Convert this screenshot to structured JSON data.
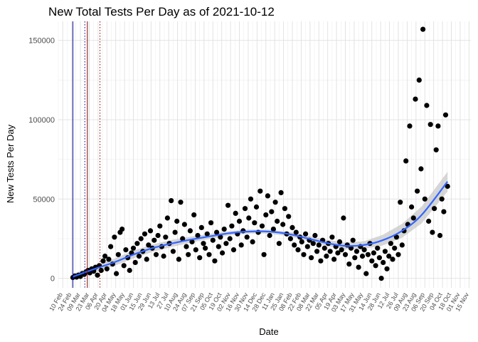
{
  "chart_data": {
    "type": "scatter",
    "title": "New Total Tests Per Day as of 2021-10-12",
    "xlabel": "Date",
    "ylabel": "New Tests Per Day",
    "ylim": [
      -6000,
      162000
    ],
    "xlim": [
      "2020-02-03",
      "2021-11-18"
    ],
    "y_ticks": [
      0,
      50000,
      100000,
      150000
    ],
    "y_tick_labels": [
      "0",
      "50000",
      "100000",
      "150000"
    ],
    "x_tick_dates": [
      "2020-02-10",
      "2020-02-24",
      "2020-03-09",
      "2020-03-23",
      "2020-04-06",
      "2020-04-20",
      "2020-05-04",
      "2020-05-18",
      "2020-06-01",
      "2020-06-15",
      "2020-06-29",
      "2020-07-13",
      "2020-07-27",
      "2020-08-10",
      "2020-08-24",
      "2020-09-07",
      "2020-09-21",
      "2020-10-05",
      "2020-10-19",
      "2020-11-02",
      "2020-11-16",
      "2020-11-30",
      "2020-12-14",
      "2020-12-28",
      "2021-01-11",
      "2021-01-25",
      "2021-02-08",
      "2021-02-22",
      "2021-03-08",
      "2021-03-22",
      "2021-04-05",
      "2021-04-19",
      "2021-05-03",
      "2021-05-17",
      "2021-05-31",
      "2021-06-14",
      "2021-06-28",
      "2021-07-12",
      "2021-07-26",
      "2021-08-09",
      "2021-08-23",
      "2021-09-06",
      "2021-09-20",
      "2021-10-04",
      "2021-10-18",
      "2021-11-01",
      "2021-11-15"
    ],
    "x_tick_labels": [
      "10 Feb",
      "24 Feb",
      "09 Mar",
      "23 Mar",
      "06 Apr",
      "20 Apr",
      "04 May",
      "18 May",
      "01 Jun",
      "15 Jun",
      "29 Jun",
      "13 Jul",
      "27 Jul",
      "10 Aug",
      "24 Aug",
      "07 Sep",
      "21 Sep",
      "05 Oct",
      "19 Oct",
      "02 Nov",
      "16 Nov",
      "30 Nov",
      "14 Dec",
      "28 Dec",
      "11 Jan",
      "25 Jan",
      "08 Feb",
      "22 Feb",
      "08 Mar",
      "22 Mar",
      "05 Apr",
      "19 Apr",
      "03 May",
      "17 May",
      "31 May",
      "14 Jun",
      "28 Jun",
      "12 Jul",
      "26 Jul",
      "09 Aug",
      "23 Aug",
      "06 Sep",
      "20 Sep",
      "04 Oct",
      "18 Oct",
      "01 Nov",
      "15 Nov"
    ],
    "grid": true,
    "points_color": "#000000",
    "trend_color": "#3366ff",
    "trend_band_color": "#c8c8c8",
    "vlines": [
      {
        "date": "2020-02-26",
        "color": "#00008b",
        "style": "solid"
      },
      {
        "date": "2020-03-16",
        "color": "#00008b",
        "style": "dotted"
      },
      {
        "date": "2020-03-20",
        "color": "#8b0000",
        "style": "solid"
      },
      {
        "date": "2020-04-09",
        "color": "#8b0000",
        "style": "dotted"
      }
    ],
    "trend": [
      {
        "x": "2020-02-26",
        "y": 1000
      },
      {
        "x": "2020-04-01",
        "y": 6000
      },
      {
        "x": "2020-05-01",
        "y": 10000
      },
      {
        "x": "2020-06-01",
        "y": 15000
      },
      {
        "x": "2020-07-01",
        "y": 19000
      },
      {
        "x": "2020-08-01",
        "y": 22000
      },
      {
        "x": "2020-09-01",
        "y": 24500
      },
      {
        "x": "2020-10-01",
        "y": 26500
      },
      {
        "x": "2020-11-01",
        "y": 28500
      },
      {
        "x": "2020-12-01",
        "y": 29500
      },
      {
        "x": "2021-01-01",
        "y": 29500
      },
      {
        "x": "2021-02-01",
        "y": 28000
      },
      {
        "x": "2021-03-01",
        "y": 25500
      },
      {
        "x": "2021-04-01",
        "y": 22500
      },
      {
        "x": "2021-05-01",
        "y": 20500
      },
      {
        "x": "2021-06-01",
        "y": 21000
      },
      {
        "x": "2021-07-01",
        "y": 24000
      },
      {
        "x": "2021-08-01",
        "y": 30000
      },
      {
        "x": "2021-09-01",
        "y": 40000
      },
      {
        "x": "2021-10-12",
        "y": 61000
      }
    ],
    "points": [
      {
        "x": "2020-02-26",
        "y": 500
      },
      {
        "x": "2020-02-29",
        "y": 1500
      },
      {
        "x": "2020-03-03",
        "y": 800
      },
      {
        "x": "2020-03-06",
        "y": 2000
      },
      {
        "x": "2020-03-09",
        "y": 1200
      },
      {
        "x": "2020-03-12",
        "y": 3000
      },
      {
        "x": "2020-03-15",
        "y": 2500
      },
      {
        "x": "2020-03-18",
        "y": 4000
      },
      {
        "x": "2020-03-21",
        "y": 5000
      },
      {
        "x": "2020-03-24",
        "y": 3500
      },
      {
        "x": "2020-03-27",
        "y": 6000
      },
      {
        "x": "2020-03-30",
        "y": 4500
      },
      {
        "x": "2020-04-02",
        "y": 7000
      },
      {
        "x": "2020-04-05",
        "y": 2000
      },
      {
        "x": "2020-04-08",
        "y": 8000
      },
      {
        "x": "2020-04-11",
        "y": 5000
      },
      {
        "x": "2020-04-14",
        "y": 11000
      },
      {
        "x": "2020-04-17",
        "y": 14000
      },
      {
        "x": "2020-04-20",
        "y": 6000
      },
      {
        "x": "2020-04-23",
        "y": 12000
      },
      {
        "x": "2020-04-26",
        "y": 20000
      },
      {
        "x": "2020-04-29",
        "y": 9000
      },
      {
        "x": "2020-05-02",
        "y": 26000
      },
      {
        "x": "2020-05-05",
        "y": 3000
      },
      {
        "x": "2020-05-08",
        "y": 15000
      },
      {
        "x": "2020-05-11",
        "y": 29000
      },
      {
        "x": "2020-05-14",
        "y": 31000
      },
      {
        "x": "2020-05-17",
        "y": 8000
      },
      {
        "x": "2020-05-20",
        "y": 18000
      },
      {
        "x": "2020-05-23",
        "y": 13000
      },
      {
        "x": "2020-05-26",
        "y": 5000
      },
      {
        "x": "2020-05-29",
        "y": 16000
      },
      {
        "x": "2020-06-01",
        "y": 19000
      },
      {
        "x": "2020-06-04",
        "y": 10000
      },
      {
        "x": "2020-06-07",
        "y": 22000
      },
      {
        "x": "2020-06-10",
        "y": 14000
      },
      {
        "x": "2020-06-13",
        "y": 25000
      },
      {
        "x": "2020-06-16",
        "y": 17000
      },
      {
        "x": "2020-06-19",
        "y": 28000
      },
      {
        "x": "2020-06-22",
        "y": 12000
      },
      {
        "x": "2020-06-25",
        "y": 21000
      },
      {
        "x": "2020-06-28",
        "y": 30000
      },
      {
        "x": "2020-07-01",
        "y": 19000
      },
      {
        "x": "2020-07-04",
        "y": 24000
      },
      {
        "x": "2020-07-07",
        "y": 15000
      },
      {
        "x": "2020-07-10",
        "y": 27000
      },
      {
        "x": "2020-07-13",
        "y": 33000
      },
      {
        "x": "2020-07-16",
        "y": 20000
      },
      {
        "x": "2020-07-19",
        "y": 14000
      },
      {
        "x": "2020-07-22",
        "y": 26000
      },
      {
        "x": "2020-07-25",
        "y": 38000
      },
      {
        "x": "2020-07-28",
        "y": 22000
      },
      {
        "x": "2020-07-31",
        "y": 49000
      },
      {
        "x": "2020-08-03",
        "y": 17000
      },
      {
        "x": "2020-08-06",
        "y": 29000
      },
      {
        "x": "2020-08-09",
        "y": 36000
      },
      {
        "x": "2020-08-12",
        "y": 12000
      },
      {
        "x": "2020-08-15",
        "y": 48000
      },
      {
        "x": "2020-08-18",
        "y": 25000
      },
      {
        "x": "2020-08-21",
        "y": 34000
      },
      {
        "x": "2020-08-24",
        "y": 20000
      },
      {
        "x": "2020-08-27",
        "y": 15000
      },
      {
        "x": "2020-08-30",
        "y": 30000
      },
      {
        "x": "2020-09-02",
        "y": 23000
      },
      {
        "x": "2020-09-05",
        "y": 40000
      },
      {
        "x": "2020-09-08",
        "y": 18000
      },
      {
        "x": "2020-09-11",
        "y": 27000
      },
      {
        "x": "2020-09-14",
        "y": 13000
      },
      {
        "x": "2020-09-17",
        "y": 32000
      },
      {
        "x": "2020-09-20",
        "y": 22000
      },
      {
        "x": "2020-09-23",
        "y": 19000
      },
      {
        "x": "2020-09-26",
        "y": 28000
      },
      {
        "x": "2020-09-29",
        "y": 15000
      },
      {
        "x": "2020-10-02",
        "y": 35000
      },
      {
        "x": "2020-10-05",
        "y": 24000
      },
      {
        "x": "2020-10-08",
        "y": 11000
      },
      {
        "x": "2020-10-11",
        "y": 29000
      },
      {
        "x": "2020-10-14",
        "y": 20000
      },
      {
        "x": "2020-10-17",
        "y": 26000
      },
      {
        "x": "2020-10-20",
        "y": 16000
      },
      {
        "x": "2020-10-23",
        "y": 31000
      },
      {
        "x": "2020-10-26",
        "y": 22000
      },
      {
        "x": "2020-10-29",
        "y": 46000
      },
      {
        "x": "2020-11-01",
        "y": 25000
      },
      {
        "x": "2020-11-04",
        "y": 33000
      },
      {
        "x": "2020-11-07",
        "y": 18000
      },
      {
        "x": "2020-11-10",
        "y": 41000
      },
      {
        "x": "2020-11-13",
        "y": 28000
      },
      {
        "x": "2020-11-16",
        "y": 36000
      },
      {
        "x": "2020-11-19",
        "y": 21000
      },
      {
        "x": "2020-11-22",
        "y": 30000
      },
      {
        "x": "2020-11-25",
        "y": 44000
      },
      {
        "x": "2020-11-28",
        "y": 26000
      },
      {
        "x": "2020-12-01",
        "y": 38000
      },
      {
        "x": "2020-12-04",
        "y": 50000
      },
      {
        "x": "2020-12-07",
        "y": 23000
      },
      {
        "x": "2020-12-10",
        "y": 35000
      },
      {
        "x": "2020-12-13",
        "y": 45000
      },
      {
        "x": "2020-12-16",
        "y": 29000
      },
      {
        "x": "2020-12-19",
        "y": 55000
      },
      {
        "x": "2020-12-22",
        "y": 33000
      },
      {
        "x": "2020-12-25",
        "y": 15000
      },
      {
        "x": "2020-12-28",
        "y": 40000
      },
      {
        "x": "2020-12-31",
        "y": 52000
      },
      {
        "x": "2021-01-03",
        "y": 27000
      },
      {
        "x": "2021-01-06",
        "y": 42000
      },
      {
        "x": "2021-01-09",
        "y": 31000
      },
      {
        "x": "2021-01-12",
        "y": 48000
      },
      {
        "x": "2021-01-15",
        "y": 36000
      },
      {
        "x": "2021-01-18",
        "y": 22000
      },
      {
        "x": "2021-01-21",
        "y": 54000
      },
      {
        "x": "2021-01-24",
        "y": 34000
      },
      {
        "x": "2021-01-27",
        "y": 44000
      },
      {
        "x": "2021-01-30",
        "y": 28000
      },
      {
        "x": "2021-02-02",
        "y": 39000
      },
      {
        "x": "2021-02-05",
        "y": 25000
      },
      {
        "x": "2021-02-08",
        "y": 32000
      },
      {
        "x": "2021-02-11",
        "y": 21000
      },
      {
        "x": "2021-02-14",
        "y": 29000
      },
      {
        "x": "2021-02-17",
        "y": 18000
      },
      {
        "x": "2021-02-20",
        "y": 26000
      },
      {
        "x": "2021-02-23",
        "y": 23000
      },
      {
        "x": "2021-02-26",
        "y": 15000
      },
      {
        "x": "2021-03-01",
        "y": 28000
      },
      {
        "x": "2021-03-04",
        "y": 20000
      },
      {
        "x": "2021-03-07",
        "y": 24000
      },
      {
        "x": "2021-03-10",
        "y": 13000
      },
      {
        "x": "2021-03-13",
        "y": 22000
      },
      {
        "x": "2021-03-16",
        "y": 27000
      },
      {
        "x": "2021-03-19",
        "y": 17000
      },
      {
        "x": "2021-03-22",
        "y": 21000
      },
      {
        "x": "2021-03-25",
        "y": 11000
      },
      {
        "x": "2021-03-28",
        "y": 24000
      },
      {
        "x": "2021-03-31",
        "y": 19000
      },
      {
        "x": "2021-04-03",
        "y": 14000
      },
      {
        "x": "2021-04-06",
        "y": 22000
      },
      {
        "x": "2021-04-09",
        "y": 17000
      },
      {
        "x": "2021-04-12",
        "y": 26000
      },
      {
        "x": "2021-04-15",
        "y": 12000
      },
      {
        "x": "2021-04-18",
        "y": 20000
      },
      {
        "x": "2021-04-21",
        "y": 16000
      },
      {
        "x": "2021-04-24",
        "y": 23000
      },
      {
        "x": "2021-04-27",
        "y": 18000
      },
      {
        "x": "2021-04-30",
        "y": 38000
      },
      {
        "x": "2021-05-03",
        "y": 15000
      },
      {
        "x": "2021-05-06",
        "y": 21000
      },
      {
        "x": "2021-05-09",
        "y": 9000
      },
      {
        "x": "2021-05-12",
        "y": 19000
      },
      {
        "x": "2021-05-15",
        "y": 24000
      },
      {
        "x": "2021-05-18",
        "y": 13000
      },
      {
        "x": "2021-05-21",
        "y": 17000
      },
      {
        "x": "2021-05-24",
        "y": 7000
      },
      {
        "x": "2021-05-27",
        "y": 20000
      },
      {
        "x": "2021-05-30",
        "y": 14000
      },
      {
        "x": "2021-06-02",
        "y": 18000
      },
      {
        "x": "2021-06-05",
        "y": 3000
      },
      {
        "x": "2021-06-08",
        "y": 15000
      },
      {
        "x": "2021-06-11",
        "y": 22000
      },
      {
        "x": "2021-06-14",
        "y": 11000
      },
      {
        "x": "2021-06-17",
        "y": 16000
      },
      {
        "x": "2021-06-20",
        "y": 8000
      },
      {
        "x": "2021-06-23",
        "y": 19000
      },
      {
        "x": "2021-06-26",
        "y": 13000
      },
      {
        "x": "2021-06-29",
        "y": 0
      },
      {
        "x": "2021-07-02",
        "y": 10000
      },
      {
        "x": "2021-07-05",
        "y": 17000
      },
      {
        "x": "2021-07-08",
        "y": 6000
      },
      {
        "x": "2021-07-11",
        "y": 14000
      },
      {
        "x": "2021-07-14",
        "y": 22000
      },
      {
        "x": "2021-07-17",
        "y": 12000
      },
      {
        "x": "2021-07-20",
        "y": 19000
      },
      {
        "x": "2021-07-23",
        "y": 26000
      },
      {
        "x": "2021-07-26",
        "y": 15000
      },
      {
        "x": "2021-07-29",
        "y": 48000
      },
      {
        "x": "2021-08-01",
        "y": 21000
      },
      {
        "x": "2021-08-04",
        "y": 30000
      },
      {
        "x": "2021-08-07",
        "y": 74000
      },
      {
        "x": "2021-08-10",
        "y": 34000
      },
      {
        "x": "2021-08-13",
        "y": 96000
      },
      {
        "x": "2021-08-16",
        "y": 45000
      },
      {
        "x": "2021-08-19",
        "y": 38000
      },
      {
        "x": "2021-08-22",
        "y": 113000
      },
      {
        "x": "2021-08-25",
        "y": 55000
      },
      {
        "x": "2021-08-28",
        "y": 125000
      },
      {
        "x": "2021-08-31",
        "y": 69000
      },
      {
        "x": "2021-09-03",
        "y": 157000
      },
      {
        "x": "2021-09-06",
        "y": 50000
      },
      {
        "x": "2021-09-09",
        "y": 109000
      },
      {
        "x": "2021-09-12",
        "y": 36000
      },
      {
        "x": "2021-09-15",
        "y": 97000
      },
      {
        "x": "2021-09-18",
        "y": 29000
      },
      {
        "x": "2021-09-21",
        "y": 44000
      },
      {
        "x": "2021-09-24",
        "y": 81000
      },
      {
        "x": "2021-09-27",
        "y": 96000
      },
      {
        "x": "2021-09-30",
        "y": 27000
      },
      {
        "x": "2021-10-03",
        "y": 50000
      },
      {
        "x": "2021-10-06",
        "y": 42000
      },
      {
        "x": "2021-10-09",
        "y": 103000
      },
      {
        "x": "2021-10-12",
        "y": 58000
      }
    ]
  }
}
